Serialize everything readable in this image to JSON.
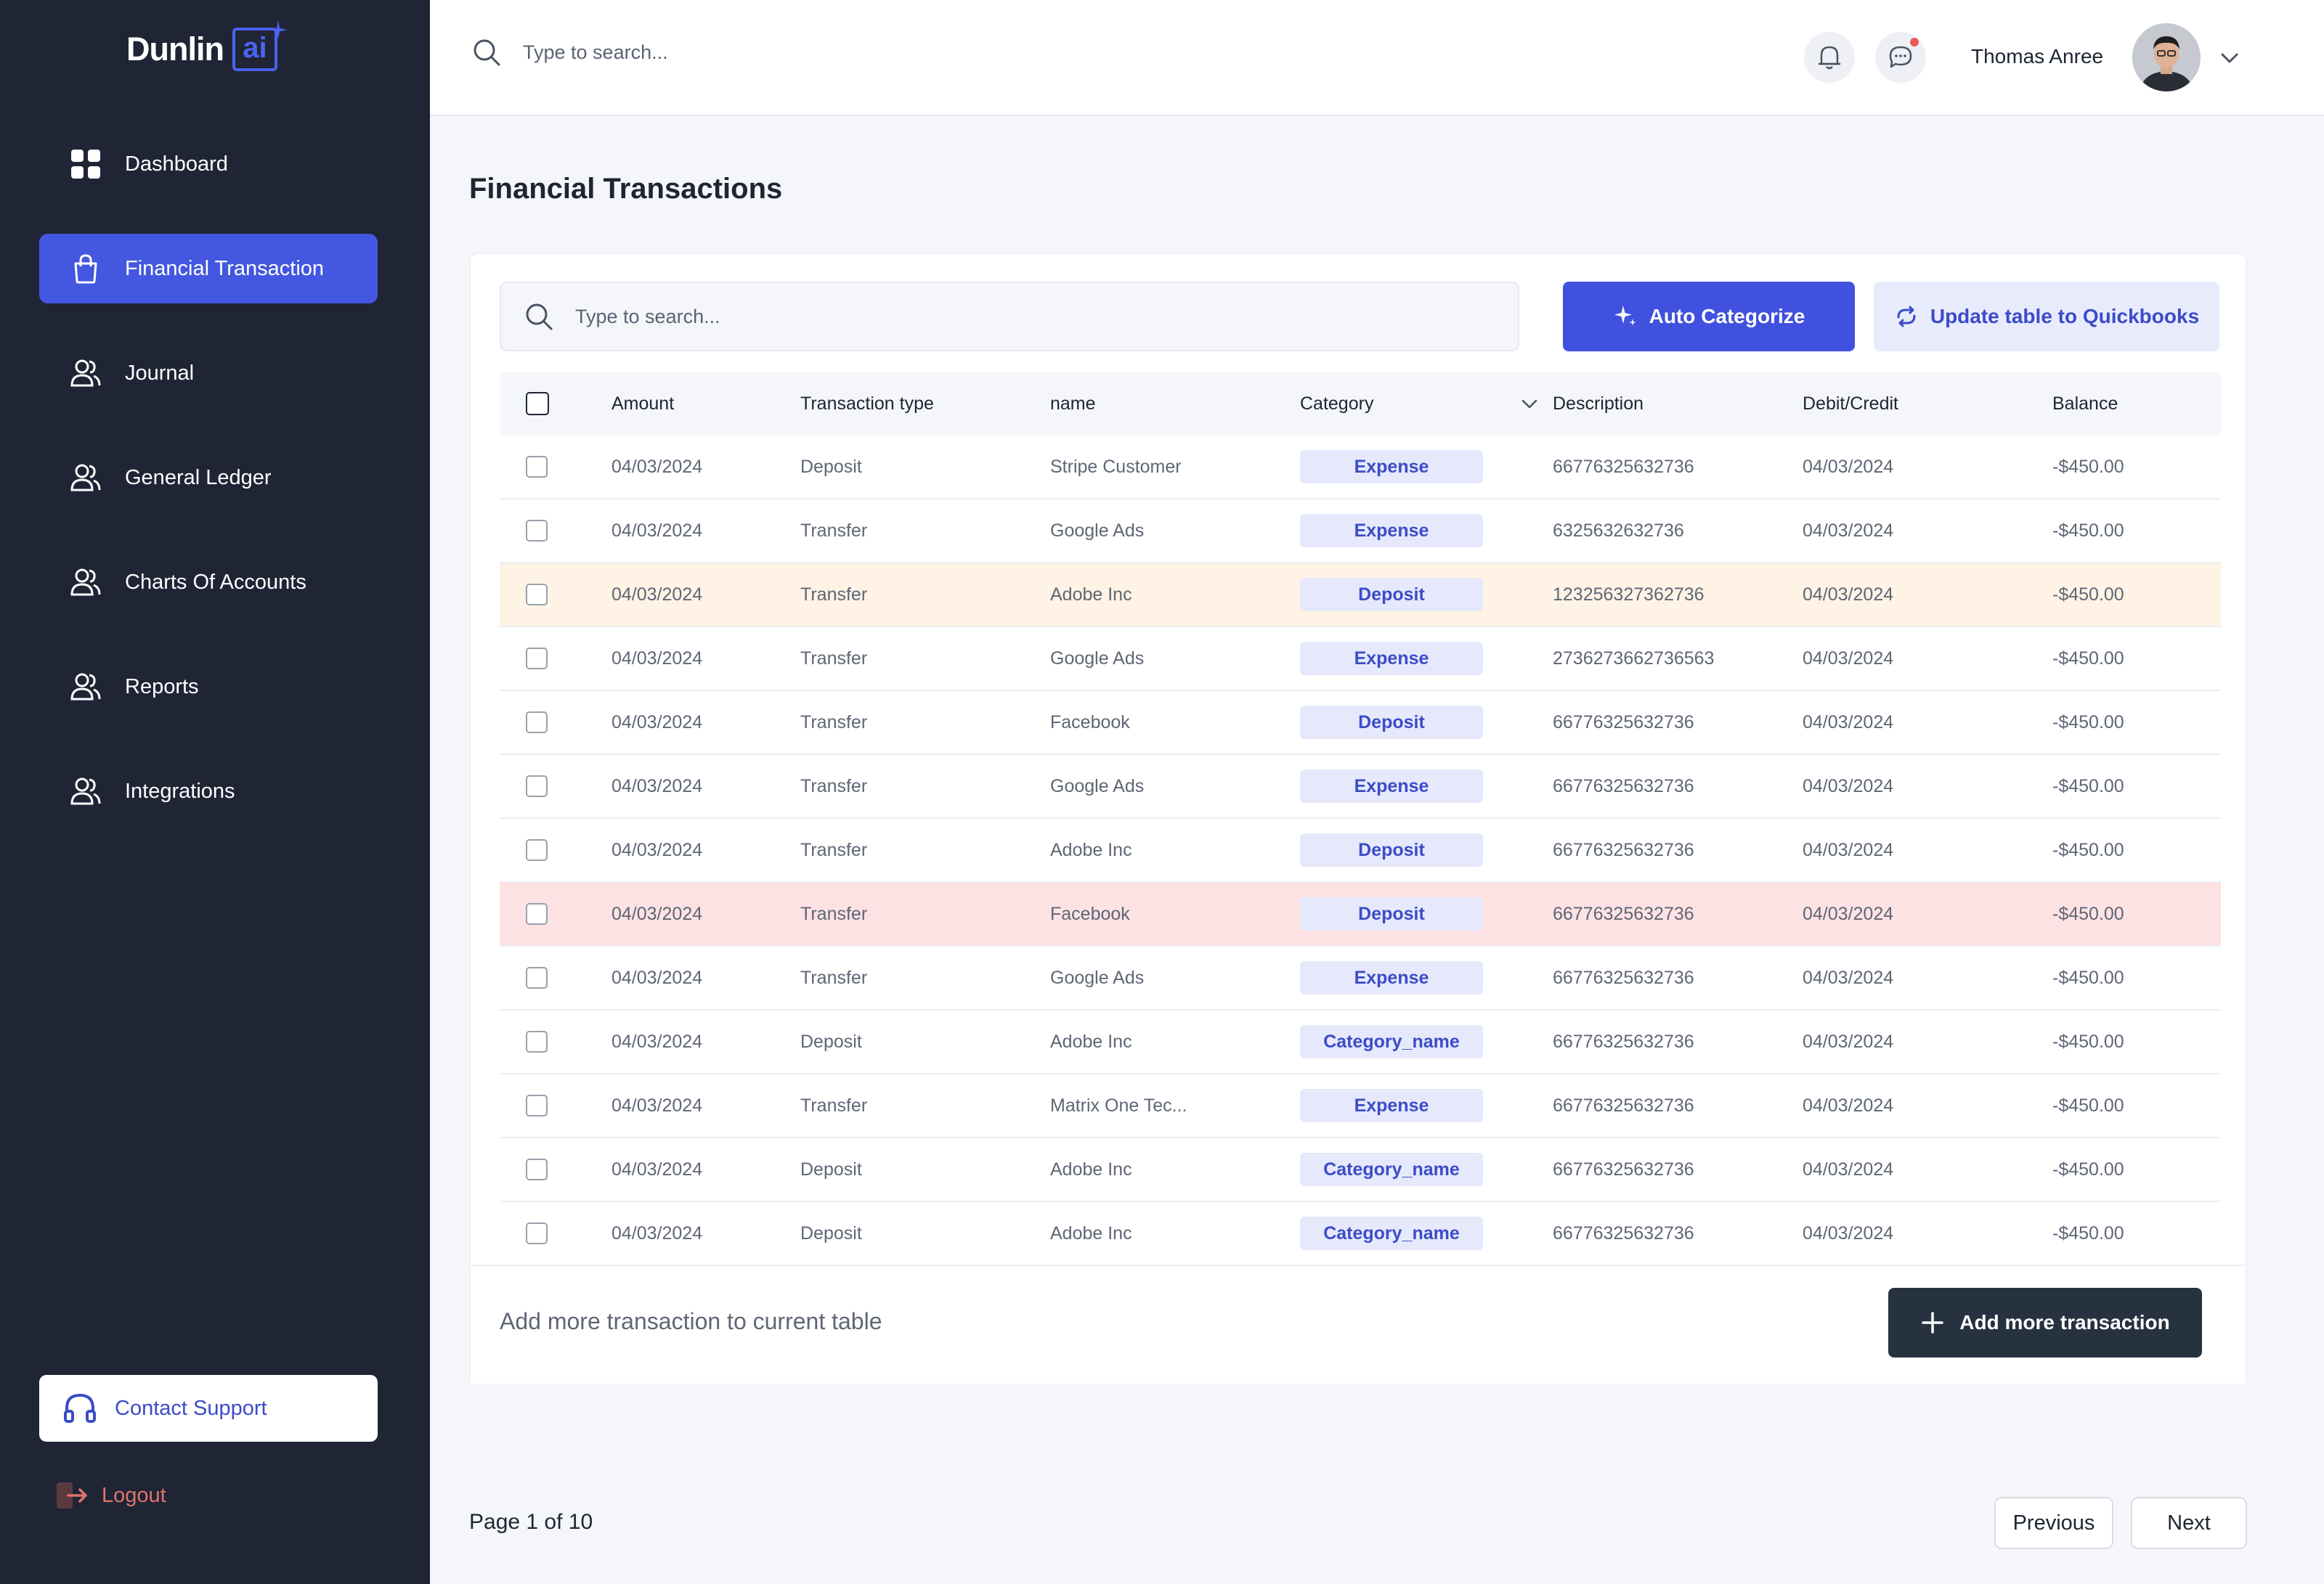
{
  "brand": {
    "name": "Dunlin",
    "badge": "ai",
    "accent": "#4a63f0"
  },
  "sidebar": {
    "items": [
      {
        "label": "Dashboard",
        "icon": "dashboard-grid-icon",
        "active": false
      },
      {
        "label": "Financial Transaction",
        "icon": "bag-icon",
        "active": true
      },
      {
        "label": "Journal",
        "icon": "users-icon",
        "active": false
      },
      {
        "label": "General Ledger",
        "icon": "users-icon",
        "active": false
      },
      {
        "label": "Charts Of Accounts",
        "icon": "users-icon",
        "active": false
      },
      {
        "label": "Reports",
        "icon": "users-icon",
        "active": false
      },
      {
        "label": "Integrations",
        "icon": "users-icon",
        "active": false
      }
    ],
    "contact_label": "Contact Support",
    "logout_label": "Logout"
  },
  "topbar": {
    "search_placeholder": "Type to search...",
    "user_name": "Thomas Anree"
  },
  "page": {
    "title": "Financial Transactions",
    "search_placeholder": "Type to search...",
    "auto_categorize_label": "Auto Categorize",
    "update_qb_label": "Update table to Quickbooks",
    "footer_text": "Add more transaction to current table",
    "add_button_label": "Add more transaction",
    "page_info": "Page 1 of 10",
    "prev_label": "Previous",
    "next_label": "Next"
  },
  "table": {
    "headers": [
      "Amount",
      "Transaction type",
      "name",
      "Category",
      "Description",
      "Debit/Credit",
      "Balance"
    ],
    "rows": [
      {
        "amount": "04/03/2024",
        "type": "Deposit",
        "name": "Stripe Customer",
        "category": "Expense",
        "description": "66776325632736",
        "debit_credit": "04/03/2024",
        "balance": "-$450.00",
        "status": "normal"
      },
      {
        "amount": "04/03/2024",
        "type": "Transfer",
        "name": "Google Ads",
        "category": "Expense",
        "description": "6325632632736",
        "debit_credit": "04/03/2024",
        "balance": "-$450.00",
        "status": "normal"
      },
      {
        "amount": "04/03/2024",
        "type": "Transfer",
        "name": "Adobe Inc",
        "category": "Deposit",
        "description": "123256327362736",
        "debit_credit": "04/03/2024",
        "balance": "-$450.00",
        "status": "warn"
      },
      {
        "amount": "04/03/2024",
        "type": "Transfer",
        "name": "Google Ads",
        "category": "Expense",
        "description": "2736273662736563",
        "debit_credit": "04/03/2024",
        "balance": "-$450.00",
        "status": "normal"
      },
      {
        "amount": "04/03/2024",
        "type": "Transfer",
        "name": "Facebook",
        "category": "Deposit",
        "description": "66776325632736",
        "debit_credit": "04/03/2024",
        "balance": "-$450.00",
        "status": "normal"
      },
      {
        "amount": "04/03/2024",
        "type": "Transfer",
        "name": "Google Ads",
        "category": "Expense",
        "description": "66776325632736",
        "debit_credit": "04/03/2024",
        "balance": "-$450.00",
        "status": "normal"
      },
      {
        "amount": "04/03/2024",
        "type": "Transfer",
        "name": "Adobe Inc",
        "category": "Deposit",
        "description": "66776325632736",
        "debit_credit": "04/03/2024",
        "balance": "-$450.00",
        "status": "normal"
      },
      {
        "amount": "04/03/2024",
        "type": "Transfer",
        "name": "Facebook",
        "category": "Deposit",
        "description": "66776325632736",
        "debit_credit": "04/03/2024",
        "balance": "-$450.00",
        "status": "err"
      },
      {
        "amount": "04/03/2024",
        "type": "Transfer",
        "name": "Google Ads",
        "category": "Expense",
        "description": "66776325632736",
        "debit_credit": "04/03/2024",
        "balance": "-$450.00",
        "status": "normal"
      },
      {
        "amount": "04/03/2024",
        "type": "Deposit",
        "name": "Adobe Inc",
        "category": "Category_name",
        "description": "66776325632736",
        "debit_credit": "04/03/2024",
        "balance": "-$450.00",
        "status": "normal"
      },
      {
        "amount": "04/03/2024",
        "type": "Transfer",
        "name": "Matrix One Tec...",
        "category": "Expense",
        "description": "66776325632736",
        "debit_credit": "04/03/2024",
        "balance": "-$450.00",
        "status": "normal"
      },
      {
        "amount": "04/03/2024",
        "type": "Deposit",
        "name": "Adobe Inc",
        "category": "Category_name",
        "description": "66776325632736",
        "debit_credit": "04/03/2024",
        "balance": "-$450.00",
        "status": "normal"
      },
      {
        "amount": "04/03/2024",
        "type": "Deposit",
        "name": "Adobe Inc",
        "category": "Category_name",
        "description": "66776325632736",
        "debit_credit": "04/03/2024",
        "balance": "-$450.00",
        "status": "normal"
      }
    ]
  }
}
